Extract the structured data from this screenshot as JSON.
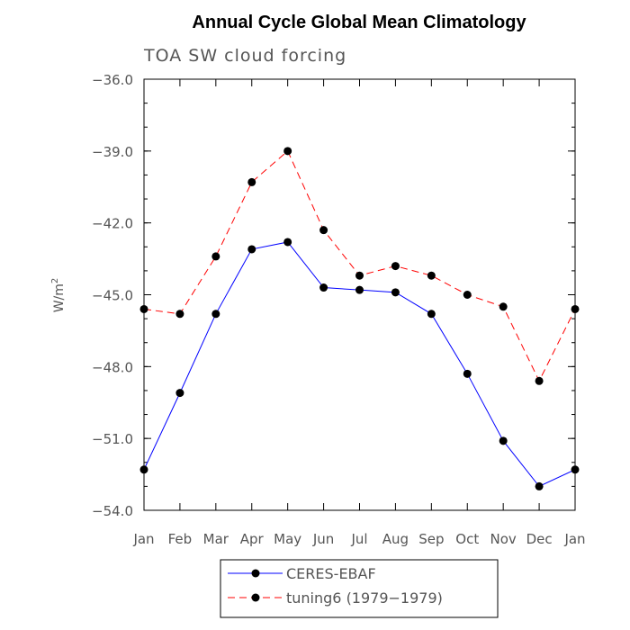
{
  "chart_data": {
    "type": "line",
    "title": "Annual Cycle Global Mean Climatology",
    "subtitle": "TOA SW cloud forcing",
    "ylabel": "W/m",
    "ylabel_superscript": "2",
    "categories": [
      "Jan",
      "Feb",
      "Mar",
      "Apr",
      "May",
      "Jun",
      "Jul",
      "Aug",
      "Sep",
      "Oct",
      "Nov",
      "Dec",
      "Jan"
    ],
    "ylim": [
      -54.0,
      -36.0
    ],
    "yticks": [
      -36.0,
      -39.0,
      -42.0,
      -45.0,
      -48.0,
      -51.0,
      -54.0
    ],
    "ytick_labels": [
      "−36.0",
      "−39.0",
      "−42.0",
      "−45.0",
      "−48.0",
      "−51.0",
      "−54.0"
    ],
    "grid": false,
    "legend_position": "bottom",
    "series": [
      {
        "name": "CERES-EBAF",
        "color": "#0000ff",
        "dash": "solid",
        "marker": "circle",
        "values": [
          -52.3,
          -49.1,
          -45.8,
          -43.1,
          -42.8,
          -44.7,
          -44.8,
          -44.9,
          -45.8,
          -48.3,
          -51.1,
          -53.0,
          -52.3
        ]
      },
      {
        "name": "tuning6 (1979−1979)",
        "color": "#ff0000",
        "dash": "dashed",
        "marker": "circle",
        "values": [
          -45.6,
          -45.8,
          -43.4,
          -40.3,
          -39.0,
          -42.3,
          -44.2,
          -43.8,
          -44.2,
          -45.0,
          -45.5,
          -48.6,
          -45.6
        ]
      }
    ]
  }
}
